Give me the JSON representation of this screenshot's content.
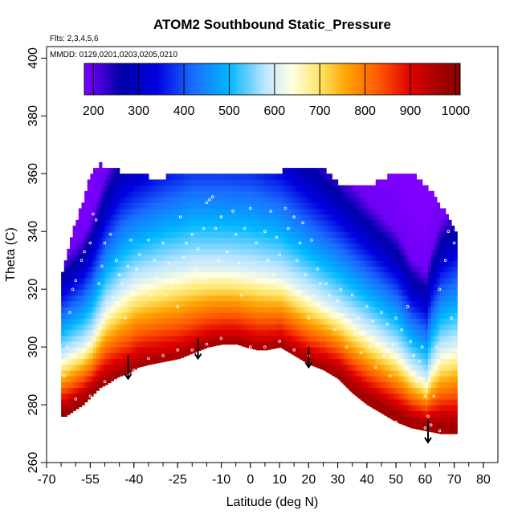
{
  "chart_data": {
    "type": "heatmap",
    "title": "ATOM2 Southbound Static_Pressure",
    "subtitle_flights": "Flts: 2,3,4,5,6",
    "subtitle_dates": "MMDD: 0129,0201,0203,0205,0210",
    "xlabel": "Latitude (deg N)",
    "ylabel": "Theta (C)",
    "xlim": [
      -70,
      85
    ],
    "ylim": [
      260,
      404
    ],
    "x_tick_values": [
      -70,
      -55,
      -40,
      -25,
      -10,
      0,
      10,
      20,
      30,
      40,
      50,
      60,
      70,
      80
    ],
    "x_tick_labels": [
      "-70",
      "-55",
      "-40",
      "-25",
      "-10",
      "0",
      "10",
      "20",
      "30",
      "40",
      "50",
      "60",
      "70",
      "80"
    ],
    "x_minor_step": 5,
    "y_tick_values": [
      260,
      280,
      300,
      320,
      340,
      360,
      380,
      400
    ],
    "y_tick_labels": [
      "260",
      "280",
      "300",
      "320",
      "340",
      "360",
      "380",
      "400"
    ],
    "colorbar": {
      "range": [
        180,
        1010
      ],
      "tick_values": [
        200,
        300,
        400,
        500,
        600,
        700,
        800,
        900,
        1000
      ],
      "tick_labels": [
        "200",
        "300",
        "400",
        "500",
        "600",
        "700",
        "800",
        "900",
        "1000"
      ],
      "colors": [
        "#7f00ff",
        "#0000a8",
        "#0000e0",
        "#1a6cff",
        "#00b7ff",
        "#bfe6ff",
        "#ffffe0",
        "#ffe566",
        "#ffa200",
        "#ff5a00",
        "#e00000",
        "#a80000",
        "#8b0000"
      ],
      "color_values": [
        180,
        260,
        340,
        420,
        500,
        580,
        640,
        700,
        760,
        830,
        900,
        960,
        1010
      ]
    },
    "surface_boundary": {
      "lat": [
        -64,
        -58,
        -55,
        -52,
        -50,
        -47,
        -45,
        -42,
        -39,
        -35,
        -30,
        -25,
        -20,
        -15,
        -10,
        -8,
        -5,
        -2,
        2,
        5,
        10,
        15,
        20,
        25,
        30,
        35,
        40,
        45,
        50,
        55,
        60,
        65,
        70
      ],
      "theta": [
        276,
        280,
        283,
        286,
        287,
        289,
        290,
        291,
        293,
        294,
        295,
        296,
        298,
        300,
        301,
        301,
        301,
        300,
        299,
        299,
        300,
        297,
        294,
        292,
        289,
        284,
        280,
        277,
        274,
        272,
        271,
        270,
        270
      ]
    },
    "top_boundary": {
      "lat": [
        -65,
        -62,
        -58,
        -55,
        -52,
        -50,
        -45,
        -40,
        -35,
        -30,
        -20,
        -10,
        0,
        10,
        20,
        25,
        30,
        40,
        50,
        55,
        60,
        65,
        70
      ],
      "theta": [
        325,
        338,
        350,
        360,
        363,
        361,
        360,
        359,
        358,
        358,
        359,
        360,
        360,
        360,
        361,
        361,
        356,
        355,
        360,
        359,
        355,
        348,
        340
      ]
    },
    "pressure_field": {
      "lat": [
        -65,
        -58,
        -55,
        -50,
        -45,
        -40,
        -30,
        -20,
        -10,
        0,
        10,
        20,
        30,
        40,
        50,
        55,
        60,
        62,
        65,
        70
      ],
      "pressure_at_surface": [
        1000,
        990,
        980,
        975,
        965,
        960,
        955,
        955,
        955,
        955,
        955,
        960,
        980,
        990,
        1000,
        1000,
        1000,
        1000,
        1000,
        1000
      ],
      "mid_theta_600hPa": [
        296,
        300,
        303,
        313,
        318,
        322,
        325,
        327,
        327,
        326,
        324,
        318,
        312,
        305,
        298,
        292,
        288,
        293,
        298,
        300
      ],
      "scale_height_theta": [
        18,
        20,
        22,
        25,
        28,
        28,
        30,
        32,
        32,
        32,
        30,
        28,
        26,
        24,
        22,
        20,
        20,
        22,
        24,
        26
      ]
    },
    "flight_points": [
      [
        -64,
        290
      ],
      [
        -63,
        300
      ],
      [
        -62,
        312
      ],
      [
        -61,
        320
      ],
      [
        -60,
        323
      ],
      [
        -58,
        330
      ],
      [
        -57,
        333
      ],
      [
        -55,
        336
      ],
      [
        -54,
        346
      ],
      [
        -53,
        344
      ],
      [
        -52,
        322
      ],
      [
        -51,
        328
      ],
      [
        -50,
        336
      ],
      [
        -48,
        339
      ],
      [
        -47,
        317
      ],
      [
        -46,
        330
      ],
      [
        -45,
        325
      ],
      [
        -44,
        322
      ],
      [
        -43,
        310
      ],
      [
        -42,
        328
      ],
      [
        -41,
        337
      ],
      [
        -40,
        318
      ],
      [
        -39,
        327
      ],
      [
        -38,
        332
      ],
      [
        -37,
        321
      ],
      [
        -35,
        337
      ],
      [
        -34,
        318
      ],
      [
        -33,
        330
      ],
      [
        -32,
        324
      ],
      [
        -30,
        336
      ],
      [
        -29,
        318
      ],
      [
        -28,
        329
      ],
      [
        -27,
        322
      ],
      [
        -25,
        314
      ],
      [
        -24,
        345
      ],
      [
        -23,
        331
      ],
      [
        -22,
        336
      ],
      [
        -21,
        322
      ],
      [
        -20,
        339
      ],
      [
        -19,
        327
      ],
      [
        -18,
        334
      ],
      [
        -17,
        324
      ],
      [
        -16,
        341
      ],
      [
        -15,
        350
      ],
      [
        -14,
        351
      ],
      [
        -13,
        352
      ],
      [
        -12,
        341
      ],
      [
        -11,
        330
      ],
      [
        -10,
        345
      ],
      [
        -9,
        325
      ],
      [
        -8,
        333
      ],
      [
        -6,
        347
      ],
      [
        -5,
        339
      ],
      [
        -4,
        329
      ],
      [
        -3,
        318
      ],
      [
        -2,
        341
      ],
      [
        0,
        348
      ],
      [
        1,
        326
      ],
      [
        2,
        336
      ],
      [
        3,
        323
      ],
      [
        5,
        340
      ],
      [
        6,
        330
      ],
      [
        7,
        347
      ],
      [
        8,
        325
      ],
      [
        9,
        338
      ],
      [
        10,
        332
      ],
      [
        12,
        348
      ],
      [
        13,
        341
      ],
      [
        14,
        320
      ],
      [
        15,
        345
      ],
      [
        16,
        330
      ],
      [
        17,
        336
      ],
      [
        18,
        343
      ],
      [
        19,
        325
      ],
      [
        20,
        310
      ],
      [
        21,
        337
      ],
      [
        22,
        318
      ],
      [
        23,
        327
      ],
      [
        24,
        322
      ],
      [
        25,
        313
      ],
      [
        26,
        322
      ],
      [
        27,
        318
      ],
      [
        28,
        311
      ],
      [
        29,
        306
      ],
      [
        30,
        316
      ],
      [
        31,
        320
      ],
      [
        32,
        311
      ],
      [
        33,
        300
      ],
      [
        34,
        309
      ],
      [
        35,
        318
      ],
      [
        36,
        305
      ],
      [
        37,
        310
      ],
      [
        38,
        298
      ],
      [
        39,
        305
      ],
      [
        40,
        314
      ],
      [
        41,
        300
      ],
      [
        42,
        309
      ],
      [
        43,
        293
      ],
      [
        44,
        301
      ],
      [
        45,
        312
      ],
      [
        46,
        297
      ],
      [
        47,
        308
      ],
      [
        48,
        290
      ],
      [
        49,
        301
      ],
      [
        50,
        310
      ],
      [
        51,
        295
      ],
      [
        52,
        306
      ],
      [
        53,
        293
      ],
      [
        54,
        314
      ],
      [
        55,
        302
      ],
      [
        56,
        297
      ],
      [
        57,
        288
      ],
      [
        58,
        295
      ],
      [
        59,
        300
      ],
      [
        60,
        283
      ],
      [
        61,
        276
      ],
      [
        62,
        273
      ],
      [
        63,
        283
      ],
      [
        64,
        300
      ],
      [
        65,
        320
      ],
      [
        66,
        349
      ],
      [
        67,
        330
      ],
      [
        68,
        340
      ],
      [
        69,
        310
      ],
      [
        70,
        336
      ],
      [
        -60,
        282
      ],
      [
        -55,
        283
      ],
      [
        -50,
        288
      ],
      [
        -45,
        289
      ],
      [
        -40,
        292
      ],
      [
        -35,
        296
      ],
      [
        -30,
        297
      ],
      [
        -25,
        299
      ],
      [
        -20,
        299
      ],
      [
        -15,
        301
      ],
      [
        -10,
        303
      ],
      [
        -5,
        300
      ],
      [
        0,
        300
      ],
      [
        5,
        300
      ],
      [
        10,
        302
      ],
      [
        15,
        299
      ],
      [
        20,
        297
      ],
      [
        25,
        291
      ],
      [
        30,
        288
      ],
      [
        35,
        282
      ],
      [
        40,
        278
      ],
      [
        45,
        276
      ],
      [
        50,
        274
      ],
      [
        55,
        271
      ],
      [
        60,
        272
      ],
      [
        65,
        271
      ]
    ],
    "arrows": [
      {
        "lat": -42,
        "theta_top": 297,
        "theta_bottom": 289
      },
      {
        "lat": -18,
        "theta_top": 303,
        "theta_bottom": 296
      },
      {
        "lat": 20,
        "theta_top": 300,
        "theta_bottom": 293
      },
      {
        "lat": 61,
        "theta_top": 275,
        "theta_bottom": 267
      }
    ],
    "grid": false,
    "legend": "colorbar top, inside plot"
  }
}
